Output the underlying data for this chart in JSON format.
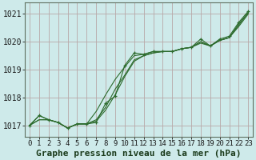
{
  "title": "Graphe pression niveau de la mer (hPa)",
  "bg_color": "#ceeaea",
  "grid_color": "#b8a8a8",
  "line_color": "#2d6b2d",
  "xlim": [
    -0.5,
    23.5
  ],
  "ylim": [
    1016.6,
    1021.4
  ],
  "yticks": [
    1017,
    1018,
    1019,
    1020,
    1021
  ],
  "xticks": [
    0,
    1,
    2,
    3,
    4,
    5,
    6,
    7,
    8,
    9,
    10,
    11,
    12,
    13,
    14,
    15,
    16,
    17,
    18,
    19,
    20,
    21,
    22,
    23
  ],
  "series_with_markers": [
    [
      1017.0,
      1017.35,
      1017.2,
      1017.1,
      1016.9,
      1017.05,
      1017.05,
      1017.1,
      1017.8,
      1018.05,
      1019.15,
      1019.6,
      1019.55,
      1019.65,
      1019.65,
      1019.65,
      1019.75,
      1019.8,
      1020.1,
      1019.85,
      1020.1,
      1020.2,
      1020.7,
      1021.1
    ]
  ],
  "series_plain": [
    [
      1017.0,
      1017.35,
      1017.2,
      1017.1,
      1016.9,
      1017.05,
      1017.05,
      1017.5,
      1018.1,
      1018.65,
      1019.1,
      1019.5,
      1019.55,
      1019.65,
      1019.65,
      1019.65,
      1019.75,
      1019.8,
      1020.0,
      1019.85,
      1020.05,
      1020.15,
      1020.65,
      1021.05
    ],
    [
      1017.0,
      1017.2,
      1017.2,
      1017.1,
      1016.9,
      1017.05,
      1017.05,
      1017.2,
      1017.65,
      1018.3,
      1018.8,
      1019.35,
      1019.5,
      1019.6,
      1019.65,
      1019.65,
      1019.75,
      1019.8,
      1020.0,
      1019.85,
      1020.05,
      1020.15,
      1020.6,
      1021.05
    ],
    [
      1017.0,
      1017.2,
      1017.2,
      1017.1,
      1016.9,
      1017.05,
      1017.05,
      1017.15,
      1017.55,
      1018.1,
      1018.75,
      1019.3,
      1019.5,
      1019.6,
      1019.65,
      1019.65,
      1019.75,
      1019.8,
      1019.95,
      1019.85,
      1020.05,
      1020.15,
      1020.55,
      1021.0
    ]
  ],
  "title_fontsize": 8,
  "tick_fontsize": 6.5
}
